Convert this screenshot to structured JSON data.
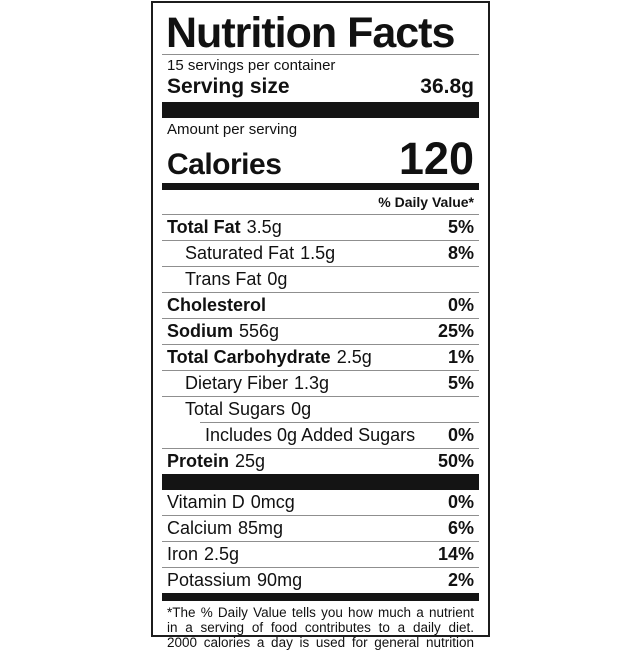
{
  "colors": {
    "background": "#ffffff",
    "text": "#111111",
    "bar": "#141414",
    "hairline": "#8f8f8f"
  },
  "label": {
    "title": "Nutrition Facts",
    "servings_per_container": "15 servings per container",
    "serving_size_label": "Serving size",
    "serving_size_value": "36.8g",
    "amount_per_serving": "Amount per serving",
    "calories_label": "Calories",
    "calories_value": "120",
    "daily_value_header": "% Daily Value*",
    "rows": [
      {
        "name": "Total Fat",
        "amount": "3.5g",
        "dv": "5%"
      },
      {
        "name": "Saturated Fat",
        "amount": "1.5g",
        "dv": "8%"
      },
      {
        "name": "Trans Fat",
        "amount": "0g",
        "dv": ""
      },
      {
        "name": "Cholesterol",
        "amount": "",
        "dv": "0%"
      },
      {
        "name": "Sodium",
        "amount": "556g",
        "dv": "25%"
      },
      {
        "name": "Total Carbohydrate",
        "amount": "2.5g",
        "dv": "1%"
      },
      {
        "name": "Dietary Fiber",
        "amount": "1.3g",
        "dv": "5%"
      },
      {
        "name": "Total Sugars",
        "amount": "0g",
        "dv": ""
      },
      {
        "name": "Includes 0g Added Sugars",
        "amount": "",
        "dv": "0%"
      },
      {
        "name": "Protein",
        "amount": "25g",
        "dv": "50%"
      }
    ],
    "micronutrients": [
      {
        "name": "Vitamin D",
        "amount": "0mcg",
        "dv": "0%"
      },
      {
        "name": "Calcium",
        "amount": "85mg",
        "dv": "6%"
      },
      {
        "name": "Iron",
        "amount": "2.5g",
        "dv": "14%"
      },
      {
        "name": "Potassium",
        "amount": "90mg",
        "dv": "2%"
      }
    ],
    "footnote_lines": [
      "*The % Daily Value tells you how much a nutrient",
      "in a serving of food contributes to a daily diet.",
      "2000 calories a day is used for general nutrition"
    ]
  }
}
